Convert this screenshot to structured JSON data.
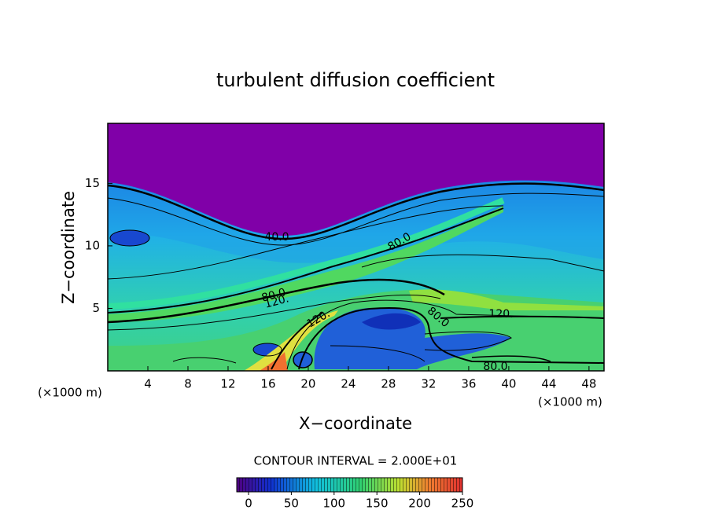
{
  "chart_data": {
    "type": "contour",
    "title": "turbulent diffusion coefficient",
    "xlabel": "X−coordinate",
    "ylabel": "Z−coordinate",
    "x_unit": "(×1000 m)",
    "xlim": [
      0,
      49.5
    ],
    "ylim": [
      0,
      19.8
    ],
    "xticks": [
      4,
      8,
      12,
      16,
      20,
      24,
      28,
      32,
      36,
      40,
      44,
      48
    ],
    "yticks": [
      5,
      10,
      15
    ],
    "contour_labels": [
      "40.0",
      "80.0",
      "80.0",
      "120.",
      "120.",
      "80.0",
      "120.",
      "80.0"
    ],
    "contour_interval": "CONTOUR INTERVAL = 2.000E+01",
    "colorbar_lim": [
      0,
      250
    ],
    "colorbar_ticks": [
      0,
      50,
      100,
      150,
      200,
      250
    ]
  }
}
